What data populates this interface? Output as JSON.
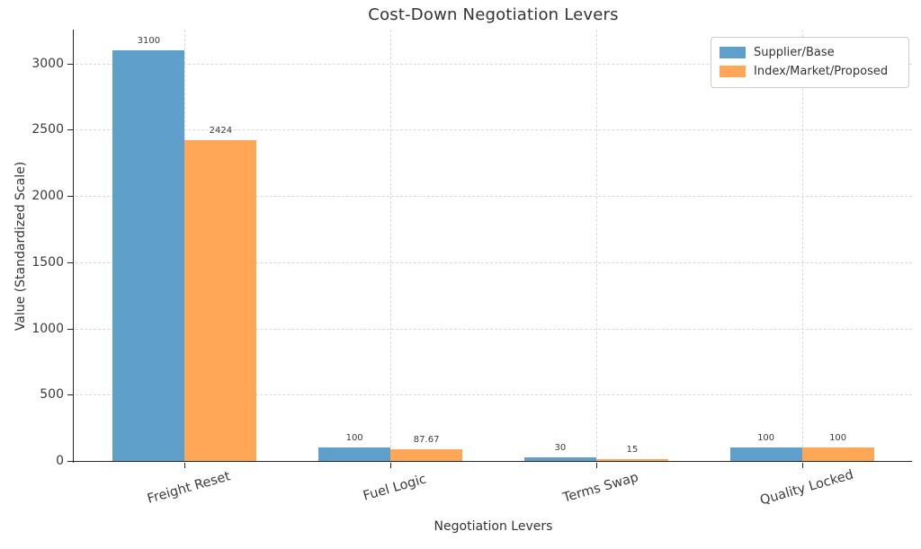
{
  "chart_data": {
    "type": "bar",
    "title": "Cost-Down Negotiation Levers",
    "xlabel": "Negotiation Levers",
    "ylabel": "Value (Standardized Scale)",
    "categories": [
      "Freight Reset",
      "Fuel Logic",
      "Terms Swap",
      "Quality Locked"
    ],
    "series": [
      {
        "name": "Supplier/Base",
        "color": "#5E9FCB",
        "values": [
          3100,
          100,
          30,
          100
        ]
      },
      {
        "name": "Index/Market/Proposed",
        "color": "#FFA657",
        "values": [
          2424,
          87.67,
          15,
          100
        ]
      }
    ],
    "bar_value_labels": {
      "Supplier/Base": [
        "3100",
        "100",
        "30",
        "100"
      ],
      "Index/Market/Proposed": [
        "2424",
        "87.67",
        "15",
        "100"
      ]
    },
    "yticks": [
      0,
      500,
      1000,
      1500,
      2000,
      2500,
      3000
    ],
    "ylim": [
      0,
      3255
    ],
    "grid": true,
    "grid_style": "dashed",
    "legend_position": "upper right"
  }
}
